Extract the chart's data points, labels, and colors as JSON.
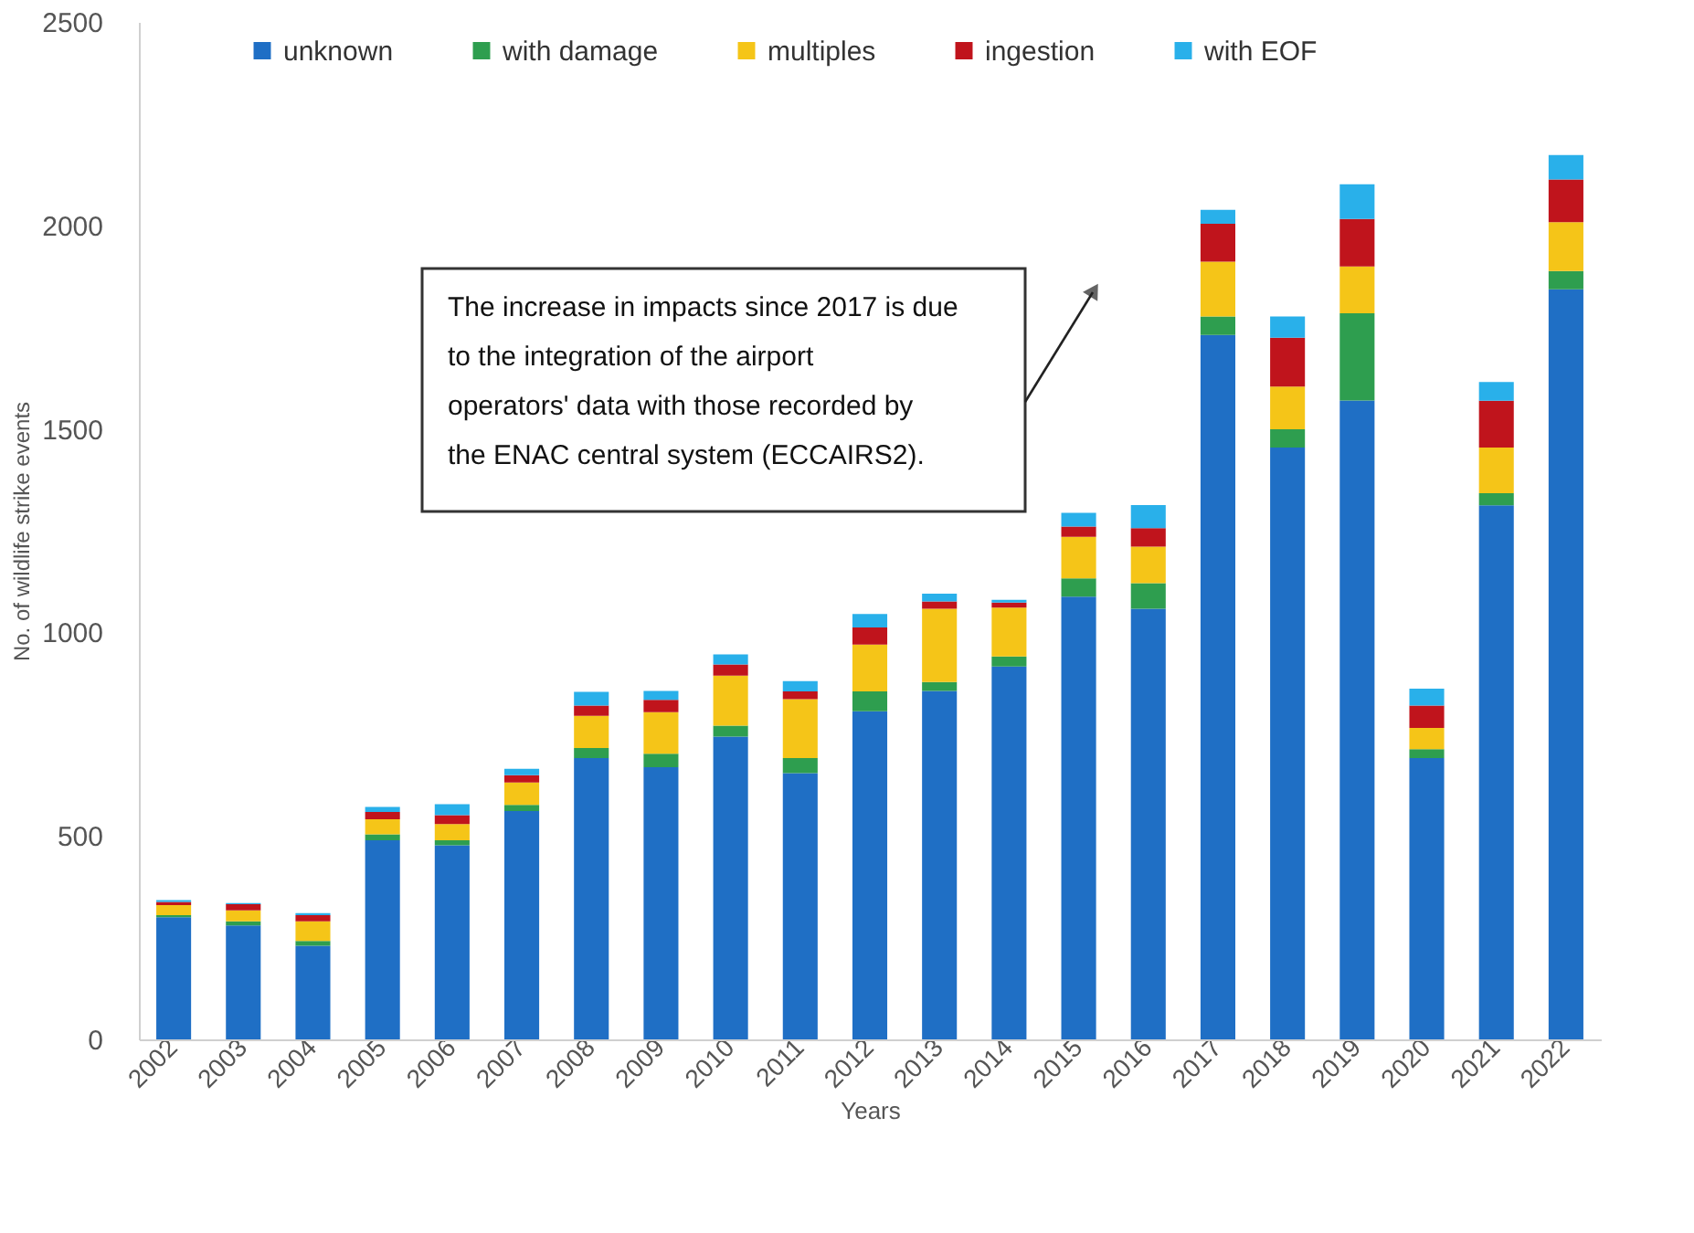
{
  "chart_data": {
    "type": "bar",
    "stacked": true,
    "xlabel": "Years",
    "ylabel": "No. of wildlife strike events",
    "categories": [
      "2002",
      "2003",
      "2004",
      "2005",
      "2006",
      "2007",
      "2008",
      "2009",
      "2010",
      "2011",
      "2012",
      "2013",
      "2014",
      "2015",
      "2016",
      "2017",
      "2018",
      "2019",
      "2020",
      "2021",
      "2022"
    ],
    "series": [
      {
        "name": "unknown",
        "color": "#1f6fc5",
        "values": [
          300,
          280,
          230,
          489,
          477,
          561,
          691,
          669,
          744,
          654,
          806,
          856,
          916,
          1088,
          1058,
          1731,
          1454,
          1570,
          691,
          1312,
          1843
        ]
      },
      {
        "name": "with damage",
        "color": "#2e9e4f",
        "values": [
          5,
          10,
          12,
          15,
          12,
          15,
          25,
          33,
          27,
          37,
          49,
          22,
          25,
          45,
          63,
          45,
          45,
          214,
          22,
          30,
          45
        ]
      },
      {
        "name": "multiples",
        "color": "#f5c518",
        "values": [
          25,
          27,
          48,
          37,
          40,
          55,
          79,
          102,
          123,
          145,
          115,
          180,
          120,
          102,
          90,
          135,
          105,
          115,
          52,
          112,
          120
        ]
      },
      {
        "name": "ingestion",
        "color": "#c0141c",
        "values": [
          8,
          15,
          15,
          18,
          22,
          18,
          25,
          30,
          27,
          19,
          42,
          18,
          12,
          25,
          45,
          93,
          120,
          117,
          55,
          115,
          105
        ]
      },
      {
        "name": "with EOF",
        "color": "#29b0ea",
        "values": [
          4,
          3,
          5,
          12,
          27,
          16,
          34,
          22,
          25,
          25,
          33,
          19,
          7,
          34,
          57,
          34,
          52,
          85,
          42,
          46,
          60
        ]
      }
    ],
    "ylim": [
      0,
      2500
    ],
    "yticks": [
      0,
      500,
      1000,
      1500,
      2000,
      2500
    ],
    "grid": false,
    "legend": "top",
    "annotations": [
      "The increase in impacts since 2017 is due to the integration of the airport operators' data with those recorded by the ENAC central system (ECCAIRS2)."
    ]
  }
}
